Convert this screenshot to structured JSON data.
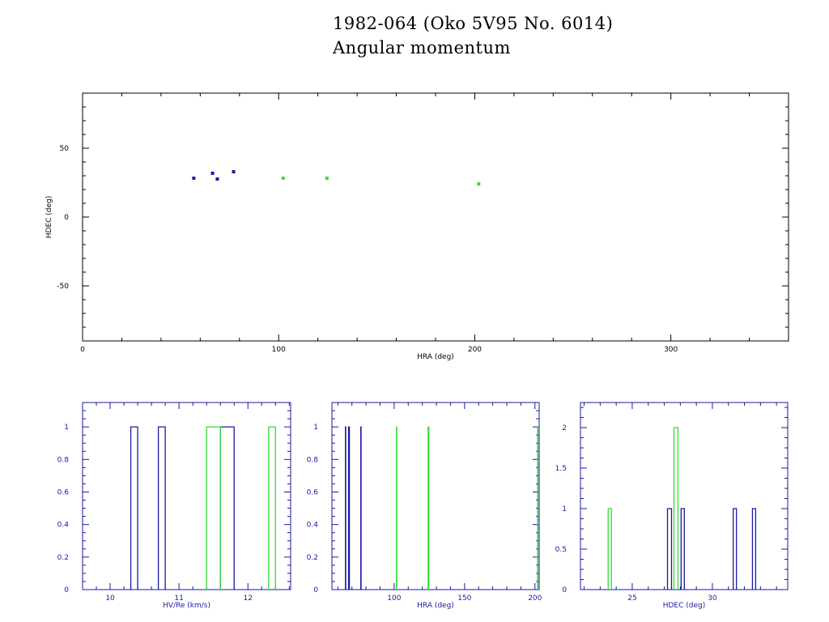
{
  "title": "1982-064 (Oko 5V95 No. 6014)",
  "subtitle": "Angular momentum",
  "colors": {
    "series_a": "#1a1aa0",
    "series_b": "#33dd33",
    "axis_top": "#000000",
    "axis_bottom": "#1a1aa0"
  },
  "chart_data": [
    {
      "type": "scatter",
      "xlabel": "HRA (deg)",
      "ylabel": "HDEC (deg)",
      "xlim": [
        0,
        360
      ],
      "ylim": [
        -90,
        90
      ],
      "xticks": [
        0,
        100,
        200,
        300
      ],
      "yticks": [
        -50,
        0,
        50
      ],
      "series": [
        {
          "name": "blue",
          "color": "#1a1aa0",
          "points": [
            [
              56.7,
              28.2
            ],
            [
              66.3,
              31.8
            ],
            [
              68.7,
              27.6
            ],
            [
              77.0,
              32.9
            ]
          ]
        },
        {
          "name": "green",
          "color": "#33dd33",
          "points": [
            [
              102.3,
              28.2
            ],
            [
              124.6,
              28.2
            ],
            [
              202.0,
              24.1
            ]
          ]
        }
      ]
    },
    {
      "type": "bar",
      "xlabel": "HV/Re (km/s)",
      "ylabel": "",
      "xlim": [
        9.6,
        12.62
      ],
      "ylim": [
        0,
        1.15
      ],
      "xticks": [
        10,
        11,
        12
      ],
      "yticks": [
        0,
        0.2,
        0.4,
        0.6,
        0.8,
        1
      ],
      "series": [
        {
          "name": "blue",
          "color": "#1a1aa0",
          "bins": [
            [
              10.3,
              10.4,
              1
            ],
            [
              10.7,
              10.8,
              1
            ],
            [
              11.6,
              11.8,
              1
            ]
          ]
        },
        {
          "name": "green",
          "color": "#33dd33",
          "bins": [
            [
              11.4,
              11.6,
              1
            ],
            [
              12.3,
              12.4,
              1
            ]
          ]
        }
      ]
    },
    {
      "type": "bar",
      "xlabel": "HRA (deg)",
      "ylabel": "",
      "xlim": [
        55.8,
        203
      ],
      "ylim": [
        0,
        1.15
      ],
      "xticks": [
        100,
        150,
        200
      ],
      "yticks": [
        0,
        0.2,
        0.4,
        0.6,
        0.8,
        1
      ],
      "series": [
        {
          "name": "blue",
          "color": "#1a1aa0",
          "bins": [
            [
              65.4,
              65.6,
              1
            ],
            [
              67.6,
              68.2,
              1
            ],
            [
              76.3,
              76.5,
              1
            ]
          ]
        },
        {
          "name": "green",
          "color": "#33dd33",
          "bins": [
            [
              101.6,
              101.8,
              1
            ],
            [
              124.1,
              124.6,
              1
            ],
            [
              201.9,
              202.1,
              1
            ]
          ]
        }
      ]
    },
    {
      "type": "bar",
      "xlabel": "HDEC (deg)",
      "ylabel": "",
      "xlim": [
        21.77,
        34.7
      ],
      "ylim": [
        0,
        2.31
      ],
      "xticks": [
        25,
        30
      ],
      "yticks": [
        0,
        0.5,
        1,
        1.5,
        2
      ],
      "series": [
        {
          "name": "blue",
          "color": "#1a1aa0",
          "bins": [
            [
              27.2,
              27.45,
              1
            ],
            [
              28.05,
              28.25,
              1
            ],
            [
              31.3,
              31.5,
              1
            ],
            [
              32.5,
              32.7,
              1
            ]
          ]
        },
        {
          "name": "green",
          "color": "#33dd33",
          "bins": [
            [
              23.5,
              23.7,
              1
            ],
            [
              27.6,
              27.85,
              2
            ]
          ]
        }
      ]
    }
  ]
}
